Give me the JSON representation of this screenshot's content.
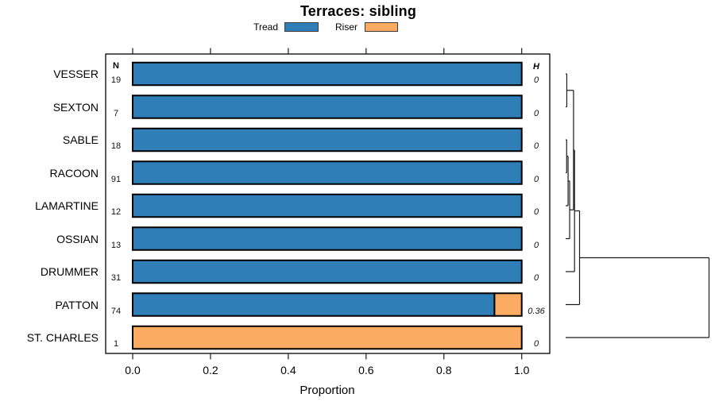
{
  "title": "Terraces: sibling",
  "legend": {
    "items": [
      {
        "label": "Tread",
        "color": "#2F7EB8"
      },
      {
        "label": "Riser",
        "color": "#FBAB62"
      }
    ]
  },
  "columns": {
    "n_header": "N",
    "h_header": "H"
  },
  "axis": {
    "label": "Proportion",
    "ticks": [
      "0.0",
      "0.2",
      "0.4",
      "0.6",
      "0.8",
      "1.0"
    ],
    "tick_values": [
      0,
      0.2,
      0.4,
      0.6,
      0.8,
      1.0
    ]
  },
  "chart_data": {
    "type": "bar",
    "orientation": "horizontal",
    "stacked": true,
    "title": "Terraces: sibling",
    "xlabel": "Proportion",
    "xlim": [
      0,
      1
    ],
    "categories": [
      "VESSER",
      "SEXTON",
      "SABLE",
      "RACOON",
      "LAMARTINE",
      "OSSIAN",
      "DRUMMER",
      "PATTON",
      "ST. CHARLES"
    ],
    "n": [
      19,
      7,
      18,
      91,
      12,
      13,
      31,
      74,
      1
    ],
    "h": [
      "0",
      "0",
      "0",
      "0",
      "0",
      "0",
      "0",
      "0.36",
      "0"
    ],
    "series": [
      {
        "name": "Tread",
        "color": "#2F7EB8",
        "values": [
          1.0,
          1.0,
          1.0,
          1.0,
          1.0,
          1.0,
          1.0,
          0.93,
          0.0
        ]
      },
      {
        "name": "Riser",
        "color": "#FBAB62",
        "values": [
          0.0,
          0.0,
          0.0,
          0.0,
          0.0,
          0.0,
          0.0,
          0.07,
          1.0
        ]
      }
    ],
    "dendrogram": {
      "position": "right",
      "leaves": [
        "VESSER",
        "SEXTON",
        "SABLE",
        "RACOON",
        "LAMARTINE",
        "OSSIAN",
        "DRUMMER",
        "PATTON",
        "ST. CHARLES"
      ],
      "merges": [
        {
          "id": "M0",
          "children": [
            "L0",
            "L1"
          ],
          "height": 0.008
        },
        {
          "id": "M1",
          "children": [
            "L2",
            "L3"
          ],
          "height": 0.007
        },
        {
          "id": "M2",
          "children": [
            "M1",
            "L4"
          ],
          "height": 0.017
        },
        {
          "id": "M3",
          "children": [
            "M2",
            "L5"
          ],
          "height": 0.028
        },
        {
          "id": "M4",
          "children": [
            "M0",
            "M3"
          ],
          "height": 0.055
        },
        {
          "id": "M5",
          "children": [
            "M4",
            "L6"
          ],
          "height": 0.062
        },
        {
          "id": "M6",
          "children": [
            "M5",
            "L7"
          ],
          "height": 0.097
        },
        {
          "id": "M7",
          "children": [
            "M6",
            "L8"
          ],
          "height": 1.0
        }
      ]
    }
  }
}
